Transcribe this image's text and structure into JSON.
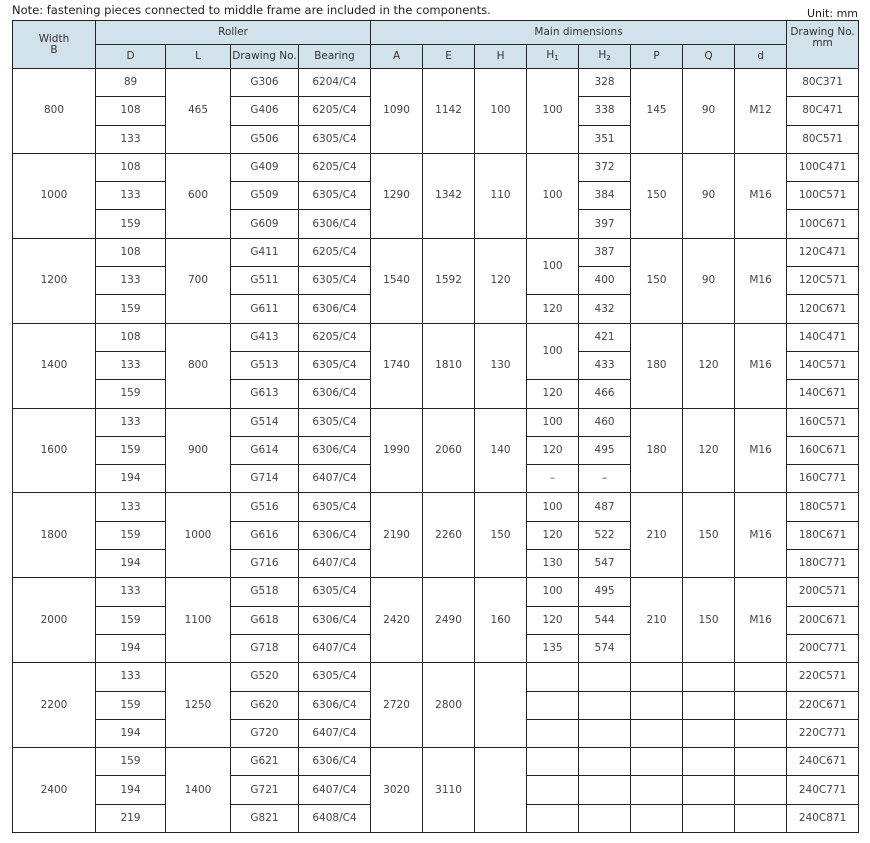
{
  "note": "Note: fastening pieces connected to middle frame are included in the components.",
  "unit": "Unit: mm",
  "header": {
    "width": [
      "Width",
      "B"
    ],
    "roller": "Roller",
    "main": "Main dimensions",
    "drawing_no": [
      "Drawing No.",
      "mm"
    ],
    "roller_cols": [
      "D",
      "L",
      "Drawing No.",
      "Bearing"
    ],
    "main_cols": [
      "A",
      "E",
      "H",
      "H1",
      "H2",
      "P",
      "Q",
      "d"
    ]
  },
  "groups": [
    {
      "B": "800",
      "L": "465",
      "A": "1090",
      "E": "1142",
      "H": "100",
      "P": "145",
      "Q": "90",
      "d": "M12",
      "h1": [
        {
          "v": "100",
          "span": 3
        }
      ],
      "rows": [
        [
          "89",
          "G306",
          "6204/C4",
          "328",
          "80C371"
        ],
        [
          "108",
          "G406",
          "6205/C4",
          "338",
          "80C471"
        ],
        [
          "133",
          "G506",
          "6305/C4",
          "351",
          "80C571"
        ]
      ]
    },
    {
      "B": "1000",
      "L": "600",
      "A": "1290",
      "E": "1342",
      "H": "110",
      "P": "150",
      "Q": "90",
      "d": "M16",
      "h1": [
        {
          "v": "100",
          "span": 3
        }
      ],
      "rows": [
        [
          "108",
          "G409",
          "6205/C4",
          "372",
          "100C471"
        ],
        [
          "133",
          "G509",
          "6305/C4",
          "384",
          "100C571"
        ],
        [
          "159",
          "G609",
          "6306/C4",
          "397",
          "100C671"
        ]
      ]
    },
    {
      "B": "1200",
      "L": "700",
      "A": "1540",
      "E": "1592",
      "H": "120",
      "P": "150",
      "Q": "90",
      "d": "M16",
      "h1": [
        {
          "v": "100",
          "span": 2
        },
        {
          "v": "120",
          "span": 1
        }
      ],
      "rows": [
        [
          "108",
          "G411",
          "6205/C4",
          "387",
          "120C471"
        ],
        [
          "133",
          "G511",
          "6305/C4",
          "400",
          "120C571"
        ],
        [
          "159",
          "G611",
          "6306/C4",
          "432",
          "120C671"
        ]
      ]
    },
    {
      "B": "1400",
      "L": "800",
      "A": "1740",
      "E": "1810",
      "H": "130",
      "P": "180",
      "Q": "120",
      "d": "M16",
      "h1": [
        {
          "v": "100",
          "span": 2
        },
        {
          "v": "120",
          "span": 1
        }
      ],
      "rows": [
        [
          "108",
          "G413",
          "6205/C4",
          "421",
          "140C471"
        ],
        [
          "133",
          "G513",
          "6305/C4",
          "433",
          "140C571"
        ],
        [
          "159",
          "G613",
          "6306/C4",
          "466",
          "140C671"
        ]
      ]
    },
    {
      "B": "1600",
      "L": "900",
      "A": "1990",
      "E": "2060",
      "H": "140",
      "P": "180",
      "Q": "120",
      "d": "M16",
      "h1": [
        {
          "v": "100",
          "span": 1
        },
        {
          "v": "120",
          "span": 1
        },
        {
          "v": "–",
          "span": 1
        }
      ],
      "rows": [
        [
          "133",
          "G514",
          "6305/C4",
          "460",
          "160C571"
        ],
        [
          "159",
          "G614",
          "6306/C4",
          "495",
          "160C671"
        ],
        [
          "194",
          "G714",
          "6407/C4",
          "–",
          "160C771"
        ]
      ]
    },
    {
      "B": "1800",
      "L": "1000",
      "A": "2190",
      "E": "2260",
      "H": "150",
      "P": "210",
      "Q": "150",
      "d": "M16",
      "h1": [
        {
          "v": "100",
          "span": 1
        },
        {
          "v": "120",
          "span": 1
        },
        {
          "v": "130",
          "span": 1
        }
      ],
      "rows": [
        [
          "133",
          "G516",
          "6305/C4",
          "487",
          "180C571"
        ],
        [
          "159",
          "G616",
          "6306/C4",
          "522",
          "180C671"
        ],
        [
          "194",
          "G716",
          "6407/C4",
          "547",
          "180C771"
        ]
      ]
    },
    {
      "B": "2000",
      "L": "1100",
      "A": "2420",
      "E": "2490",
      "H": "160",
      "P": "210",
      "Q": "150",
      "d": "M16",
      "h1": [
        {
          "v": "100",
          "span": 1
        },
        {
          "v": "120",
          "span": 1
        },
        {
          "v": "135",
          "span": 1
        }
      ],
      "rows": [
        [
          "133",
          "G518",
          "6305/C4",
          "495",
          "200C571"
        ],
        [
          "159",
          "G618",
          "6306/C4",
          "544",
          "200C671"
        ],
        [
          "194",
          "G718",
          "6407/C4",
          "574",
          "200C771"
        ]
      ]
    },
    {
      "B": "2200",
      "L": "1250",
      "A": "2720",
      "E": "2800",
      "H": "",
      "P": null,
      "Q": null,
      "d": null,
      "h1": [
        {
          "v": "",
          "span": 1
        },
        {
          "v": "",
          "span": 1
        },
        {
          "v": "",
          "span": 1
        }
      ],
      "rows": [
        [
          "133",
          "G520",
          "6305/C4",
          "",
          "220C571"
        ],
        [
          "159",
          "G620",
          "6306/C4",
          "",
          "220C671"
        ],
        [
          "194",
          "G720",
          "6407/C4",
          "",
          "220C771"
        ]
      ]
    },
    {
      "B": "2400",
      "L": "1400",
      "A": "3020",
      "E": "3110",
      "H": "",
      "P": null,
      "Q": null,
      "d": null,
      "h1": [
        {
          "v": "",
          "span": 1
        },
        {
          "v": "",
          "span": 1
        },
        {
          "v": "",
          "span": 1
        }
      ],
      "rows": [
        [
          "159",
          "G621",
          "6306/C4",
          "",
          "240C671"
        ],
        [
          "194",
          "G721",
          "6407/C4",
          "",
          "240C771"
        ],
        [
          "219",
          "G821",
          "6408/C4",
          "",
          "240C871"
        ]
      ]
    }
  ]
}
